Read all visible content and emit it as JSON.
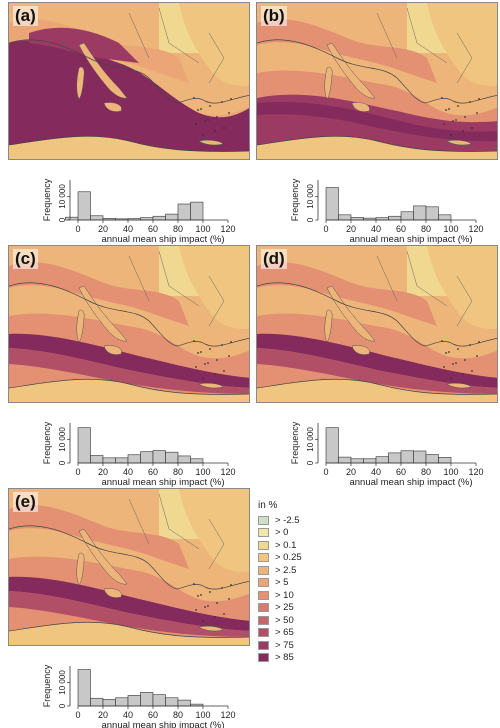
{
  "panels": [
    {
      "label": "(a)",
      "hist": {
        "values": [
          1200,
          12000,
          1800,
          700,
          500,
          600,
          1000,
          1600,
          2500,
          6800,
          7600
        ]
      }
    },
    {
      "label": "(b)",
      "hist": {
        "values": [
          13800,
          2200,
          1100,
          800,
          1000,
          1600,
          3500,
          6000,
          5600,
          2200
        ]
      }
    },
    {
      "label": "(c)",
      "hist": {
        "values": [
          15000,
          3200,
          2200,
          2200,
          3500,
          4800,
          5300,
          4600,
          3000,
          1800
        ]
      }
    },
    {
      "label": "(d)",
      "hist": {
        "values": [
          15000,
          2500,
          1800,
          1800,
          2700,
          4300,
          5200,
          5100,
          3600,
          2400
        ]
      }
    },
    {
      "label": "(e)",
      "hist": {
        "values": [
          15500,
          3300,
          2800,
          3500,
          4500,
          5800,
          4800,
          3500,
          2500,
          800
        ]
      }
    }
  ],
  "chart_data": {
    "type": "bar",
    "xlabel": "annual mean ship impact (%)",
    "ylabel": "Frequency",
    "xlim": [
      0,
      120
    ],
    "ylim": [
      0,
      17000
    ],
    "xticks": [
      "0",
      "20",
      "40",
      "60",
      "80",
      "100",
      "120"
    ],
    "yticks": [
      "0",
      "10 000"
    ],
    "bin_width": 10,
    "note": "histogram bins of width 10 starting at 0 (panel a starts at -10)"
  },
  "legend": {
    "title": "in %",
    "items": [
      {
        "label": "> -2.5",
        "color": "#cfe0c8"
      },
      {
        "label": "> 0",
        "color": "#f3e6a6"
      },
      {
        "label": "> 0.1",
        "color": "#f1d891"
      },
      {
        "label": "> 0.25",
        "color": "#efc57f"
      },
      {
        "label": "> 2.5",
        "color": "#edb57a"
      },
      {
        "label": "> 5",
        "color": "#eba576"
      },
      {
        "label": "> 10",
        "color": "#e49173"
      },
      {
        "label": "> 25",
        "color": "#d97a70"
      },
      {
        "label": "> 50",
        "color": "#c7656c"
      },
      {
        "label": "> 65",
        "color": "#b14f67"
      },
      {
        "label": "> 75",
        "color": "#9b3b63"
      },
      {
        "label": "> 85",
        "color": "#842a5d"
      }
    ]
  }
}
